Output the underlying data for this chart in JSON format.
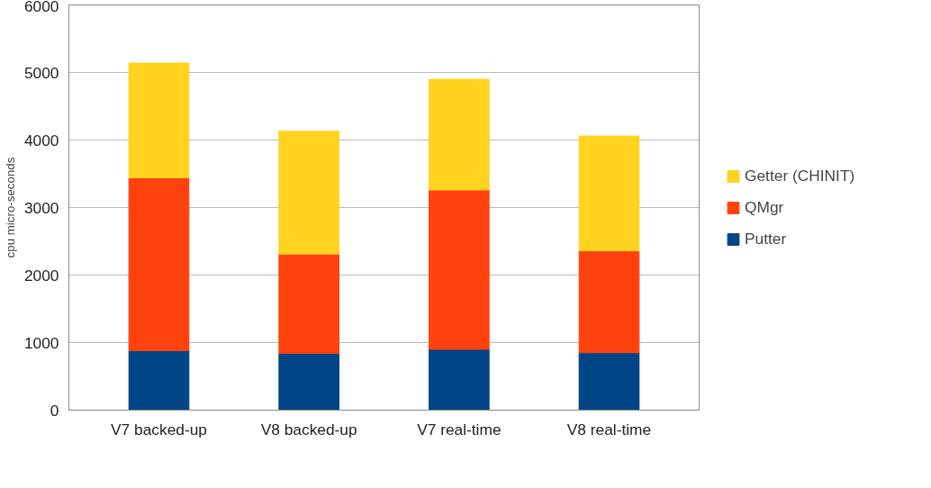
{
  "chart_data": {
    "type": "bar",
    "stacked": true,
    "ylabel": "cpu micro-seconds",
    "categories": [
      "V7 backed-up",
      "V8 backed-up",
      "V7 real-time",
      "V8 real-time"
    ],
    "series": [
      {
        "name": "Putter",
        "color": "#004586",
        "values": [
          880,
          840,
          900,
          850
        ]
      },
      {
        "name": "QMgr",
        "color": "#ff420e",
        "values": [
          2560,
          1470,
          2360,
          1510
        ]
      },
      {
        "name": "Getter (CHINIT)",
        "color": "#ffd320",
        "values": [
          1700,
          1820,
          1640,
          1700
        ]
      }
    ],
    "ylim": [
      0,
      6000
    ],
    "yticks": [
      0,
      1000,
      2000,
      3000,
      4000,
      5000,
      6000
    ],
    "grid": "y",
    "legend": "right"
  }
}
